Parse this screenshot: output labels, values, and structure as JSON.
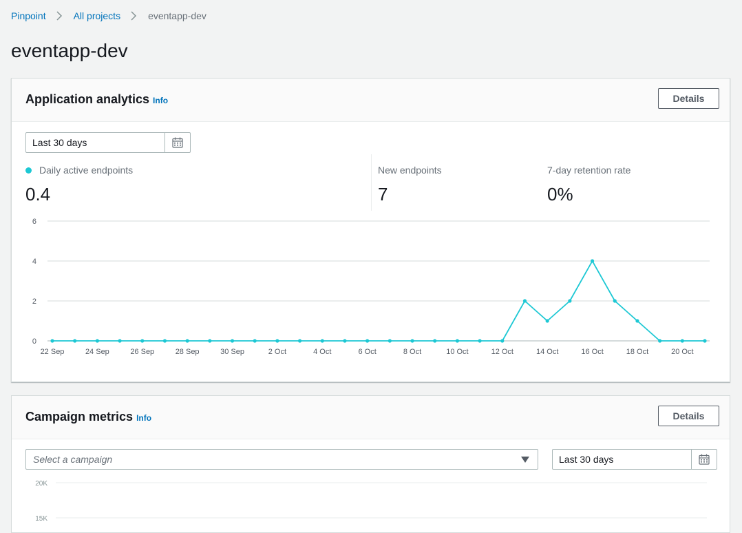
{
  "breadcrumb": {
    "items": [
      "Pinpoint",
      "All projects"
    ],
    "current": "eventapp-dev"
  },
  "page": {
    "title": "eventapp-dev"
  },
  "analytics": {
    "title": "Application analytics",
    "info": "Info",
    "details": "Details",
    "date_range": "Last 30 days",
    "metrics": [
      {
        "label": "Daily active endpoints",
        "value": "0.4",
        "color": "#1dc8d4"
      },
      {
        "label": "New endpoints",
        "value": "7"
      },
      {
        "label": "7-day retention rate",
        "value": "0%"
      }
    ]
  },
  "chart_data": {
    "type": "line",
    "series": [
      {
        "values": [
          0,
          0,
          0,
          0,
          0,
          0,
          0,
          0,
          0,
          0,
          0,
          0,
          0,
          0,
          0,
          0,
          0,
          0,
          0,
          0,
          0,
          2,
          1,
          2,
          4,
          2,
          1,
          0,
          0,
          0
        ],
        "color": "#1dc8d4"
      }
    ],
    "x": [
      "22 Sep",
      "23 Sep",
      "24 Sep",
      "25 Sep",
      "26 Sep",
      "27 Sep",
      "28 Sep",
      "29 Sep",
      "30 Sep",
      "1 Oct",
      "2 Oct",
      "3 Oct",
      "4 Oct",
      "5 Oct",
      "6 Oct",
      "7 Oct",
      "8 Oct",
      "9 Oct",
      "10 Oct",
      "11 Oct",
      "12 Oct",
      "13 Oct",
      "14 Oct",
      "15 Oct",
      "16 Oct",
      "17 Oct",
      "18 Oct",
      "19 Oct",
      "20 Oct",
      "21 Oct"
    ],
    "xticks": [
      "22 Sep",
      "24 Sep",
      "26 Sep",
      "28 Sep",
      "30 Sep",
      "2 Oct",
      "4 Oct",
      "6 Oct",
      "8 Oct",
      "10 Oct",
      "12 Oct",
      "14 Oct",
      "16 Oct",
      "18 Oct",
      "20 Oct"
    ],
    "yticks": [
      "0",
      "2",
      "4",
      "6"
    ],
    "ylim": [
      0,
      6
    ],
    "grid": true
  },
  "campaign": {
    "title": "Campaign metrics",
    "info": "Info",
    "details": "Details",
    "select_placeholder": "Select a campaign",
    "date_range": "Last 30 days",
    "yticks": [
      "20K",
      "15K"
    ]
  }
}
